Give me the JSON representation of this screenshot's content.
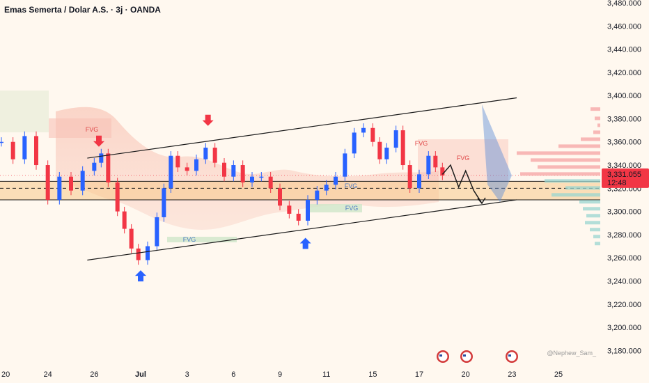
{
  "header": {
    "title": "Emas Semerta / Dolar A.S. · 3j · OANDA"
  },
  "price_label": {
    "value": "3,331.055",
    "countdown": "12:48"
  },
  "watermark": "@Nephew_Sam_",
  "colors": {
    "bull": "#2962ff",
    "bear": "#f23645",
    "price_tag": "#f23645",
    "zone_fill": "#f7c98a",
    "channel": "#1a1a1a",
    "projection": "#5b8bd6",
    "background": "#fff8ef"
  },
  "fvg_labels": [
    "FVG",
    "FVG",
    "FVG",
    "FVG",
    "FVG",
    "FVG"
  ],
  "icons": {
    "bear_arrow": "down-arrow-red-icon",
    "bull_arrow": "up-arrow-blue-icon",
    "event": "us-flag-event-icon"
  },
  "chart_data": {
    "type": "line",
    "xlabel": "",
    "ylabel": "",
    "ylim": [
      3170,
      3480
    ],
    "y_ticks": [
      3180,
      3200,
      3220,
      3240,
      3260,
      3280,
      3300,
      3320,
      3340,
      3360,
      3380,
      3400,
      3420,
      3440,
      3460,
      3480
    ],
    "y_tick_labels": [
      "3,180.000",
      "3,200.000",
      "3,220.000",
      "3,240.000",
      "3,260.000",
      "3,280.000",
      "3,300.000",
      "3,320.000",
      "3,340.000",
      "3,360.000",
      "3,380.000",
      "3,400.000",
      "3,420.000",
      "3,440.000",
      "3,460.000",
      "3,480.000"
    ],
    "x_tick_labels": [
      "20",
      "24",
      "26",
      "Jul",
      "3",
      "6",
      "9",
      "11",
      "15",
      "17",
      "20",
      "23",
      "25"
    ],
    "x_ticks_day": [
      0,
      2,
      4,
      6,
      8,
      10,
      12,
      14,
      16,
      18,
      20,
      22,
      24
    ],
    "x_range_day": [
      0,
      27
    ],
    "series": [
      {
        "values": [
          [
            0,
            3360
          ],
          [
            0.5,
            3345
          ],
          [
            1,
            3365
          ],
          [
            1.5,
            3340
          ],
          [
            2,
            3310
          ],
          [
            2.5,
            3330
          ],
          [
            3,
            3318
          ],
          [
            3.5,
            3335
          ],
          [
            4,
            3342
          ],
          [
            4.3,
            3350
          ],
          [
            4.6,
            3325
          ],
          [
            5,
            3300
          ],
          [
            5.3,
            3285
          ],
          [
            5.6,
            3268
          ],
          [
            5.9,
            3258
          ],
          [
            6.3,
            3270
          ],
          [
            6.7,
            3295
          ],
          [
            7,
            3320
          ],
          [
            7.3,
            3348
          ],
          [
            7.6,
            3338
          ],
          [
            8,
            3335
          ],
          [
            8.4,
            3345
          ],
          [
            8.8,
            3355
          ],
          [
            9.2,
            3342
          ],
          [
            9.6,
            3330
          ],
          [
            10,
            3340
          ],
          [
            10.4,
            3325
          ],
          [
            10.8,
            3330
          ],
          [
            11.2,
            3330
          ],
          [
            11.6,
            3320
          ],
          [
            12,
            3305
          ],
          [
            12.4,
            3298
          ],
          [
            12.8,
            3292
          ],
          [
            13.2,
            3310
          ],
          [
            13.6,
            3318
          ],
          [
            14,
            3323
          ],
          [
            14.4,
            3330
          ],
          [
            14.8,
            3350
          ],
          [
            15.2,
            3368
          ],
          [
            15.6,
            3372
          ],
          [
            16,
            3360
          ],
          [
            16.3,
            3345
          ],
          [
            16.6,
            3355
          ],
          [
            17,
            3370
          ],
          [
            17.3,
            3340
          ],
          [
            17.6,
            3320
          ],
          [
            18,
            3332
          ],
          [
            18.4,
            3348
          ],
          [
            18.7,
            3338
          ],
          [
            19,
            3331
          ]
        ]
      }
    ],
    "channel": {
      "upper": [
        [
          3.7,
          3346
        ],
        [
          22.2,
          3398
        ]
      ],
      "lower": [
        [
          3.7,
          3258
        ],
        [
          22.2,
          3310
        ]
      ]
    },
    "zone": {
      "top": 3326,
      "bottom": 3310,
      "mid": 3320
    },
    "projection_path": [
      [
        19,
        3332
      ],
      [
        19.35,
        3340
      ],
      [
        19.7,
        3321
      ],
      [
        20.0,
        3335
      ],
      [
        20.35,
        3318
      ],
      [
        20.7,
        3307
      ]
    ],
    "bear_markers": [
      [
        4.2,
        3357
      ],
      [
        8.9,
        3375
      ]
    ],
    "bull_markers": [
      [
        6.0,
        3248
      ],
      [
        13.1,
        3276
      ]
    ]
  }
}
